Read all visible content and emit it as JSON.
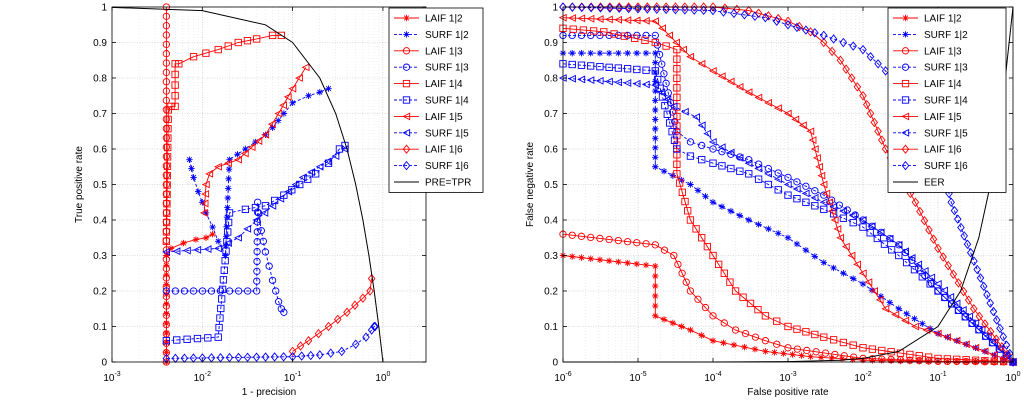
{
  "chart_data": [
    {
      "type": "line",
      "title": "",
      "xlabel": "1 - precision",
      "ylabel": "True positive rate",
      "xscale": "log",
      "xlim": [
        0.001,
        3
      ],
      "ylim": [
        0,
        1
      ],
      "grid": true,
      "legend_position": "top-right",
      "x_tick_labels": [
        "10^-3",
        "10^-2",
        "10^-1",
        "10^0"
      ],
      "y_tick_labels": [
        "0",
        "0.1",
        "0.2",
        "0.3",
        "0.4",
        "0.5",
        "0.6",
        "0.7",
        "0.8",
        "0.9",
        "1"
      ],
      "series": [
        {
          "name": "LAIF 1|2",
          "color": "#ff0000",
          "dash": "solid",
          "marker": "star",
          "x": [
            0.004,
            0.004,
            0.0045,
            0.0062,
            0.0085,
            0.011,
            0.013
          ],
          "y": [
            0.0,
            0.3,
            0.32,
            0.335,
            0.345,
            0.35,
            0.36
          ]
        },
        {
          "name": "SURF 1|2",
          "color": "#0000ff",
          "dash": "dashed",
          "marker": "star",
          "x": [
            0.0072,
            0.008,
            0.009,
            0.01,
            0.011,
            0.013,
            0.015,
            0.018,
            0.02,
            0.03,
            0.05,
            0.06,
            0.08,
            0.1,
            0.15,
            0.2,
            0.25
          ],
          "y": [
            0.57,
            0.52,
            0.48,
            0.45,
            0.42,
            0.38,
            0.34,
            0.3,
            0.57,
            0.6,
            0.64,
            0.66,
            0.7,
            0.73,
            0.75,
            0.76,
            0.77
          ]
        },
        {
          "name": "LAIF 1|3",
          "color": "#ff0000",
          "dash": "solid",
          "marker": "circle",
          "x": [
            0.004,
            0.004,
            0.004
          ],
          "y": [
            0.0,
            0.5,
            1.0
          ]
        },
        {
          "name": "SURF 1|3",
          "color": "#0000ff",
          "dash": "dashed",
          "marker": "circle",
          "x": [
            0.004,
            0.04,
            0.041,
            0.042,
            0.045,
            0.05,
            0.055,
            0.06,
            0.065,
            0.07,
            0.075,
            0.08
          ],
          "y": [
            0.2,
            0.2,
            0.45,
            0.42,
            0.37,
            0.31,
            0.27,
            0.23,
            0.2,
            0.17,
            0.15,
            0.14
          ]
        },
        {
          "name": "LAIF 1|4",
          "color": "#ff0000",
          "dash": "solid",
          "marker": "square",
          "x": [
            0.004,
            0.0042,
            0.0045,
            0.005,
            0.005,
            0.0055,
            0.008,
            0.015,
            0.025,
            0.04,
            0.06,
            0.075
          ],
          "y": [
            0.34,
            0.71,
            0.72,
            0.72,
            0.84,
            0.84,
            0.86,
            0.88,
            0.9,
            0.91,
            0.92,
            0.92
          ]
        },
        {
          "name": "SURF 1|4",
          "color": "#0000ff",
          "dash": "dashed",
          "marker": "square",
          "x": [
            0.004,
            0.015,
            0.02,
            0.03,
            0.05,
            0.08,
            0.12,
            0.18,
            0.25,
            0.33,
            0.38
          ],
          "y": [
            0.06,
            0.07,
            0.42,
            0.43,
            0.44,
            0.47,
            0.5,
            0.53,
            0.56,
            0.6,
            0.61
          ]
        },
        {
          "name": "LAIF 1|5",
          "color": "#ff0000",
          "dash": "solid",
          "marker": "triangle-left",
          "x": [
            0.0105,
            0.011,
            0.012,
            0.015,
            0.025,
            0.05,
            0.07,
            0.1,
            0.14
          ],
          "y": [
            0.42,
            0.5,
            0.53,
            0.55,
            0.57,
            0.64,
            0.7,
            0.77,
            0.83
          ]
        },
        {
          "name": "SURF 1|5",
          "color": "#0000ff",
          "dash": "dashed",
          "marker": "triangle-left",
          "x": [
            0.004,
            0.015,
            0.025,
            0.04,
            0.06,
            0.09,
            0.13,
            0.2,
            0.3,
            0.38
          ],
          "y": [
            0.31,
            0.32,
            0.35,
            0.4,
            0.44,
            0.48,
            0.52,
            0.55,
            0.58,
            0.6
          ]
        },
        {
          "name": "LAIF 1|6",
          "color": "#ff0000",
          "dash": "solid",
          "marker": "diamond",
          "x": [
            0.1,
            0.15,
            0.25,
            0.4,
            0.6,
            0.72,
            0.75
          ],
          "y": [
            0.03,
            0.06,
            0.1,
            0.14,
            0.18,
            0.2,
            0.235
          ]
        },
        {
          "name": "SURF 1|6",
          "color": "#0000ff",
          "dash": "dashed",
          "marker": "diamond",
          "x": [
            0.004,
            0.1,
            0.2,
            0.35,
            0.5,
            0.65,
            0.75,
            0.8,
            0.82
          ],
          "y": [
            0.01,
            0.015,
            0.02,
            0.03,
            0.05,
            0.07,
            0.09,
            0.1,
            0.1
          ]
        },
        {
          "name": "PRE=TPR",
          "color": "#000000",
          "dash": "solid",
          "marker": "none",
          "x": [
            0.001,
            0.01,
            0.05,
            0.1,
            0.2,
            0.3,
            0.4,
            0.5,
            0.6,
            0.7,
            0.8,
            0.9,
            0.95,
            1.0
          ],
          "y": [
            0.999,
            0.99,
            0.95,
            0.9,
            0.8,
            0.7,
            0.6,
            0.5,
            0.4,
            0.3,
            0.2,
            0.1,
            0.05,
            0.0
          ]
        }
      ]
    },
    {
      "type": "line",
      "title": "",
      "xlabel": "False positive rate",
      "ylabel": "False negative rate",
      "xscale": "log",
      "xlim": [
        1e-06,
        1
      ],
      "ylim": [
        0,
        1
      ],
      "grid": true,
      "legend_position": "top-right",
      "x_tick_labels": [
        "10^-6",
        "10^-5",
        "10^-4",
        "10^-3",
        "10^-2",
        "10^-1",
        "10^0"
      ],
      "y_tick_labels": [
        "0",
        "0.1",
        "0.2",
        "0.3",
        "0.4",
        "0.5",
        "0.6",
        "0.7",
        "0.8",
        "0.9",
        "1"
      ],
      "series": [
        {
          "name": "LAIF 1|2",
          "color": "#ff0000",
          "dash": "solid",
          "marker": "star",
          "x": [
            1e-06,
            1.7e-05,
            1.7e-05,
            5e-05,
            0.0001,
            0.0005,
            0.002,
            0.01,
            0.1,
            1.0
          ],
          "y": [
            0.3,
            0.27,
            0.13,
            0.09,
            0.06,
            0.03,
            0.015,
            0.005,
            0.001,
            0.0
          ]
        },
        {
          "name": "SURF 1|2",
          "color": "#0000ff",
          "dash": "dashed",
          "marker": "star",
          "x": [
            1e-06,
            1.7e-05,
            1.7e-05,
            5e-05,
            0.0001,
            0.0003,
            0.001,
            0.003,
            0.01,
            0.03,
            0.1,
            1.0
          ],
          "y": [
            0.87,
            0.87,
            0.55,
            0.5,
            0.45,
            0.4,
            0.35,
            0.28,
            0.22,
            0.15,
            0.08,
            0.0
          ]
        },
        {
          "name": "LAIF 1|3",
          "color": "#ff0000",
          "dash": "solid",
          "marker": "circle",
          "x": [
            1e-06,
            1.7e-05,
            3e-05,
            5e-05,
            0.0001,
            0.0002,
            0.0005,
            0.001,
            0.01,
            0.1,
            1.0
          ],
          "y": [
            0.36,
            0.33,
            0.3,
            0.2,
            0.13,
            0.09,
            0.06,
            0.04,
            0.01,
            0.002,
            0.0
          ]
        },
        {
          "name": "SURF 1|3",
          "color": "#0000ff",
          "dash": "dashed",
          "marker": "circle",
          "x": [
            1e-06,
            1.7e-05,
            3.3e-05,
            5e-05,
            0.0001,
            0.0003,
            0.001,
            0.003,
            0.01,
            0.03,
            0.1,
            1.0
          ],
          "y": [
            0.92,
            0.92,
            0.65,
            0.62,
            0.6,
            0.57,
            0.52,
            0.47,
            0.4,
            0.33,
            0.2,
            0.0
          ]
        },
        {
          "name": "LAIF 1|4",
          "color": "#ff0000",
          "dash": "solid",
          "marker": "square",
          "x": [
            1e-06,
            3.5e-06,
            1.7e-05,
            3.3e-05,
            3.3e-05,
            5e-05,
            0.0001,
            0.0002,
            0.0005,
            0.001,
            0.003,
            0.01,
            0.1,
            1.0
          ],
          "y": [
            0.94,
            0.93,
            0.9,
            0.88,
            0.53,
            0.4,
            0.3,
            0.2,
            0.13,
            0.1,
            0.07,
            0.04,
            0.01,
            0.0
          ]
        },
        {
          "name": "SURF 1|4",
          "color": "#0000ff",
          "dash": "dashed",
          "marker": "square",
          "x": [
            1e-06,
            1.7e-05,
            3.3e-05,
            5e-05,
            0.0001,
            0.0003,
            0.001,
            0.003,
            0.01,
            0.03,
            0.1,
            1.0
          ],
          "y": [
            0.84,
            0.82,
            0.6,
            0.58,
            0.56,
            0.53,
            0.47,
            0.43,
            0.38,
            0.3,
            0.2,
            0.0
          ]
        },
        {
          "name": "LAIF 1|5",
          "color": "#ff0000",
          "dash": "solid",
          "marker": "triangle-left",
          "x": [
            1e-06,
            1.7e-05,
            5e-05,
            0.0001,
            0.0003,
            0.001,
            0.002,
            0.003,
            0.005,
            0.01,
            0.02,
            0.05,
            0.1,
            1.0
          ],
          "y": [
            0.97,
            0.96,
            0.86,
            0.82,
            0.76,
            0.7,
            0.65,
            0.5,
            0.35,
            0.25,
            0.15,
            0.1,
            0.08,
            0.0
          ]
        },
        {
          "name": "SURF 1|5",
          "color": "#0000ff",
          "dash": "dashed",
          "marker": "triangle-left",
          "x": [
            1e-06,
            1.7e-05,
            3e-05,
            6e-05,
            0.0001,
            0.0003,
            0.001,
            0.003,
            0.01,
            0.03,
            0.1,
            1.0
          ],
          "y": [
            0.8,
            0.78,
            0.72,
            0.69,
            0.62,
            0.56,
            0.5,
            0.45,
            0.4,
            0.33,
            0.22,
            0.0
          ]
        },
        {
          "name": "LAIF 1|6",
          "color": "#ff0000",
          "dash": "solid",
          "marker": "diamond",
          "x": [
            1e-06,
            0.0001,
            0.0003,
            0.001,
            0.002,
            0.003,
            0.005,
            0.01,
            0.02,
            0.05,
            0.1,
            0.3,
            1.0
          ],
          "y": [
            1.0,
            1.0,
            0.99,
            0.96,
            0.93,
            0.9,
            0.85,
            0.75,
            0.6,
            0.45,
            0.32,
            0.15,
            0.0
          ]
        },
        {
          "name": "SURF 1|6",
          "color": "#0000ff",
          "dash": "dashed",
          "marker": "diamond",
          "x": [
            1e-06,
            0.0001,
            0.0005,
            0.001,
            0.003,
            0.01,
            0.02,
            0.05,
            0.1,
            0.15,
            1.0
          ],
          "y": [
            1.0,
            0.99,
            0.97,
            0.95,
            0.92,
            0.88,
            0.82,
            0.72,
            0.6,
            0.45,
            0.0
          ]
        },
        {
          "name": "EER",
          "color": "#000000",
          "dash": "solid",
          "marker": "none",
          "x": [
            1e-06,
            0.0001,
            0.001,
            0.005,
            0.01,
            0.03,
            0.1,
            0.2,
            0.35,
            0.5,
            0.7,
            1.0
          ],
          "y": [
            0.0,
            0.0001,
            0.001,
            0.005,
            0.01,
            0.03,
            0.1,
            0.2,
            0.35,
            0.5,
            0.7,
            1.0
          ]
        }
      ]
    }
  ]
}
